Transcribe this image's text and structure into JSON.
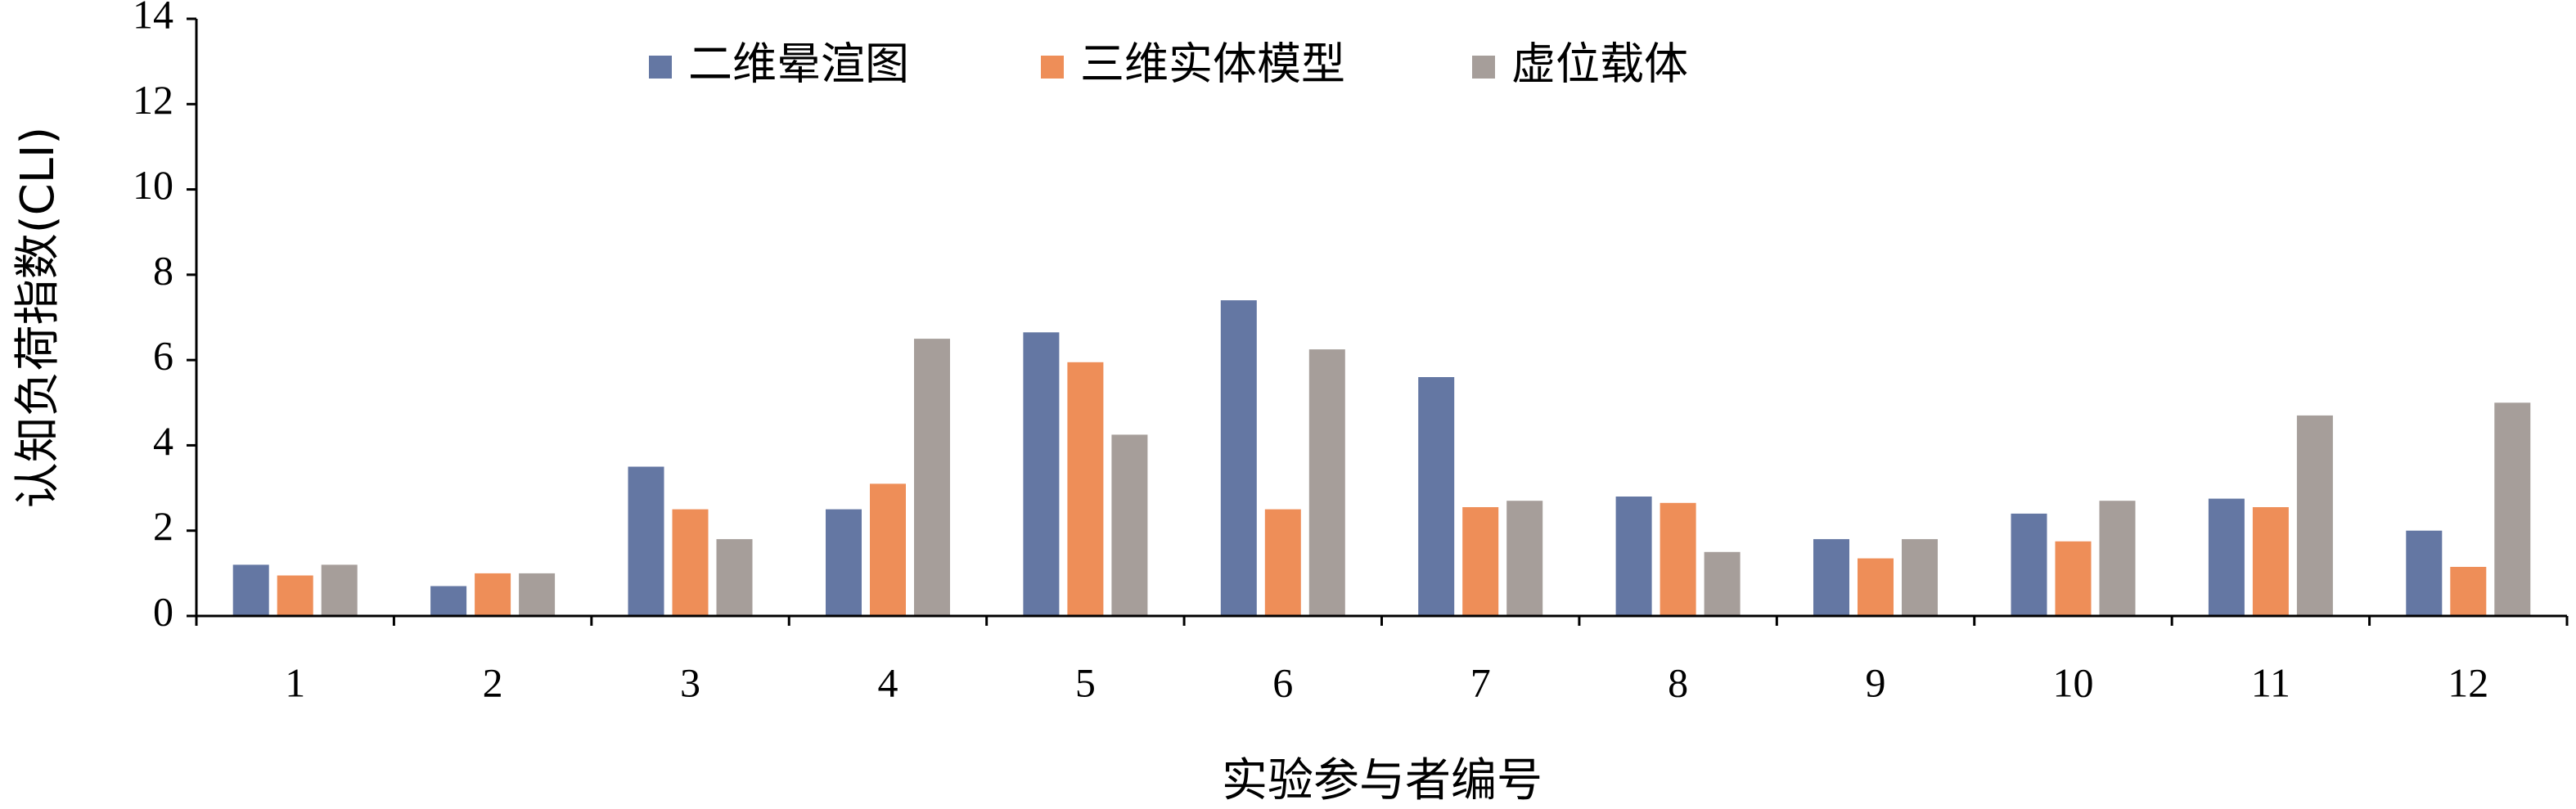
{
  "chart_data": {
    "type": "bar",
    "title": "",
    "xlabel": "实验参与者编号",
    "ylabel": "认知负荷指数(CLI)",
    "ylim": [
      0,
      14
    ],
    "yticks": [
      0,
      2,
      4,
      6,
      8,
      10,
      12,
      14
    ],
    "grid": false,
    "legend_position": "top-center",
    "categories": [
      "1",
      "2",
      "3",
      "4",
      "5",
      "6",
      "7",
      "8",
      "9",
      "10",
      "11",
      "12"
    ],
    "series": [
      {
        "name": "二维晕渲图",
        "color": "#6477a3",
        "values": [
          1.2,
          0.7,
          3.5,
          2.5,
          6.65,
          7.4,
          5.6,
          2.8,
          1.8,
          2.4,
          2.75,
          2.0
        ]
      },
      {
        "name": "三维实体模型",
        "color": "#ee8e58",
        "values": [
          0.95,
          1.0,
          2.5,
          3.1,
          5.95,
          2.5,
          2.55,
          2.65,
          1.35,
          1.75,
          2.55,
          1.15
        ]
      },
      {
        "name": "虚位载体",
        "color": "#a69e9a",
        "values": [
          1.2,
          1.0,
          1.8,
          6.5,
          4.25,
          6.25,
          2.7,
          1.5,
          1.8,
          2.7,
          4.7,
          5.0
        ]
      }
    ]
  }
}
